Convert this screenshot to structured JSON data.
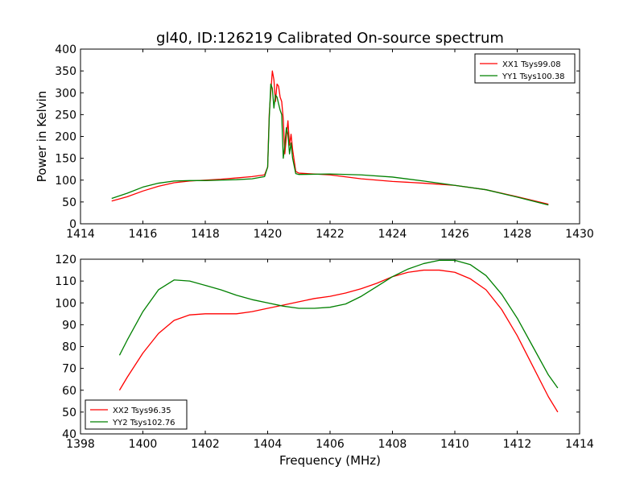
{
  "chart_data": [
    {
      "type": "line",
      "title": "gl40, ID:126219 Calibrated On-source spectrum",
      "xlabel": "",
      "ylabel": "Power in Kelvin",
      "xlim": [
        1414,
        1430
      ],
      "ylim": [
        0,
        400
      ],
      "xticks": [
        1414,
        1416,
        1418,
        1420,
        1422,
        1424,
        1426,
        1428,
        1430
      ],
      "yticks": [
        0,
        50,
        100,
        150,
        200,
        250,
        300,
        350,
        400
      ],
      "legend_position": "top-right",
      "series": [
        {
          "name": "XX1 Tsys99.08",
          "color": "#ff0000",
          "points": [
            [
              1415.0,
              52
            ],
            [
              1415.5,
              62
            ],
            [
              1416.0,
              75
            ],
            [
              1416.5,
              86
            ],
            [
              1417.0,
              94
            ],
            [
              1417.5,
              98
            ],
            [
              1418.0,
              100
            ],
            [
              1418.5,
              102
            ],
            [
              1419.0,
              105
            ],
            [
              1419.5,
              108
            ],
            [
              1419.9,
              112
            ],
            [
              1420.0,
              130
            ],
            [
              1420.05,
              250
            ],
            [
              1420.1,
              300
            ],
            [
              1420.15,
              350
            ],
            [
              1420.2,
              330
            ],
            [
              1420.25,
              280
            ],
            [
              1420.3,
              320
            ],
            [
              1420.35,
              315
            ],
            [
              1420.4,
              290
            ],
            [
              1420.45,
              280
            ],
            [
              1420.5,
              240
            ],
            [
              1420.55,
              160
            ],
            [
              1420.6,
              200
            ],
            [
              1420.65,
              236
            ],
            [
              1420.7,
              180
            ],
            [
              1420.75,
              205
            ],
            [
              1420.8,
              170
            ],
            [
              1420.9,
              120
            ],
            [
              1421.0,
              116
            ],
            [
              1422.0,
              112
            ],
            [
              1423.0,
              103
            ],
            [
              1424.0,
              97
            ],
            [
              1425.0,
              93
            ],
            [
              1426.0,
              88
            ],
            [
              1427.0,
              78
            ],
            [
              1428.0,
              62
            ],
            [
              1429.0,
              45
            ]
          ]
        },
        {
          "name": "YY1 Tsys100.38",
          "color": "#008000",
          "points": [
            [
              1415.0,
              58
            ],
            [
              1415.5,
              70
            ],
            [
              1416.0,
              84
            ],
            [
              1416.5,
              93
            ],
            [
              1417.0,
              98
            ],
            [
              1417.5,
              99
            ],
            [
              1418.0,
              99
            ],
            [
              1418.5,
              100
            ],
            [
              1419.0,
              101
            ],
            [
              1419.5,
              103
            ],
            [
              1419.9,
              108
            ],
            [
              1420.0,
              130
            ],
            [
              1420.05,
              240
            ],
            [
              1420.1,
              320
            ],
            [
              1420.15,
              310
            ],
            [
              1420.2,
              265
            ],
            [
              1420.25,
              295
            ],
            [
              1420.3,
              290
            ],
            [
              1420.35,
              275
            ],
            [
              1420.4,
              260
            ],
            [
              1420.45,
              250
            ],
            [
              1420.5,
              150
            ],
            [
              1420.55,
              180
            ],
            [
              1420.6,
              220
            ],
            [
              1420.65,
              205
            ],
            [
              1420.7,
              160
            ],
            [
              1420.75,
              185
            ],
            [
              1420.8,
              150
            ],
            [
              1420.9,
              115
            ],
            [
              1421.0,
              113
            ],
            [
              1422.0,
              114
            ],
            [
              1423.0,
              112
            ],
            [
              1424.0,
              107
            ],
            [
              1425.0,
              98
            ],
            [
              1426.0,
              88
            ],
            [
              1427.0,
              78
            ],
            [
              1428.0,
              61
            ],
            [
              1429.0,
              43
            ]
          ]
        }
      ]
    },
    {
      "type": "line",
      "title": "",
      "xlabel": "Frequency (MHz)",
      "ylabel": "",
      "xlim": [
        1398,
        1414
      ],
      "ylim": [
        40,
        120
      ],
      "xticks": [
        1398,
        1400,
        1402,
        1404,
        1406,
        1408,
        1410,
        1412,
        1414
      ],
      "yticks": [
        40,
        50,
        60,
        70,
        80,
        90,
        100,
        110,
        120
      ],
      "legend_position": "bottom-left",
      "series": [
        {
          "name": "XX2 Tsys96.35",
          "color": "#ff0000",
          "points": [
            [
              1399.25,
              60
            ],
            [
              1399.5,
              66
            ],
            [
              1400.0,
              77
            ],
            [
              1400.5,
              86
            ],
            [
              1401.0,
              92
            ],
            [
              1401.5,
              94.5
            ],
            [
              1402.0,
              95
            ],
            [
              1402.5,
              95
            ],
            [
              1403.0,
              95
            ],
            [
              1403.5,
              96
            ],
            [
              1404.0,
              97.5
            ],
            [
              1404.5,
              99
            ],
            [
              1405.0,
              100.5
            ],
            [
              1405.5,
              102
            ],
            [
              1406.0,
              103
            ],
            [
              1406.5,
              104.5
            ],
            [
              1407.0,
              106.5
            ],
            [
              1407.5,
              109
            ],
            [
              1408.0,
              112
            ],
            [
              1408.5,
              114
            ],
            [
              1409.0,
              115
            ],
            [
              1409.5,
              115
            ],
            [
              1410.0,
              114
            ],
            [
              1410.5,
              111
            ],
            [
              1411.0,
              106
            ],
            [
              1411.5,
              97
            ],
            [
              1412.0,
              85
            ],
            [
              1412.5,
              71
            ],
            [
              1413.0,
              57
            ],
            [
              1413.3,
              50
            ]
          ]
        },
        {
          "name": "YY2 Tsys102.76",
          "color": "#008000",
          "points": [
            [
              1399.25,
              76
            ],
            [
              1399.5,
              83
            ],
            [
              1400.0,
              96
            ],
            [
              1400.5,
              106
            ],
            [
              1401.0,
              110.5
            ],
            [
              1401.5,
              110
            ],
            [
              1402.0,
              108
            ],
            [
              1402.5,
              106
            ],
            [
              1403.0,
              103.5
            ],
            [
              1403.5,
              101.5
            ],
            [
              1404.0,
              100
            ],
            [
              1404.5,
              98.5
            ],
            [
              1405.0,
              97.5
            ],
            [
              1405.5,
              97.5
            ],
            [
              1406.0,
              98
            ],
            [
              1406.5,
              99.5
            ],
            [
              1407.0,
              103
            ],
            [
              1407.5,
              107.5
            ],
            [
              1408.0,
              112
            ],
            [
              1408.5,
              115.5
            ],
            [
              1409.0,
              118
            ],
            [
              1409.5,
              119.5
            ],
            [
              1410.0,
              119.5
            ],
            [
              1410.5,
              117.5
            ],
            [
              1411.0,
              112.5
            ],
            [
              1411.5,
              104
            ],
            [
              1412.0,
              93
            ],
            [
              1412.5,
              80
            ],
            [
              1413.0,
              67
            ],
            [
              1413.3,
              61
            ]
          ]
        }
      ]
    }
  ]
}
